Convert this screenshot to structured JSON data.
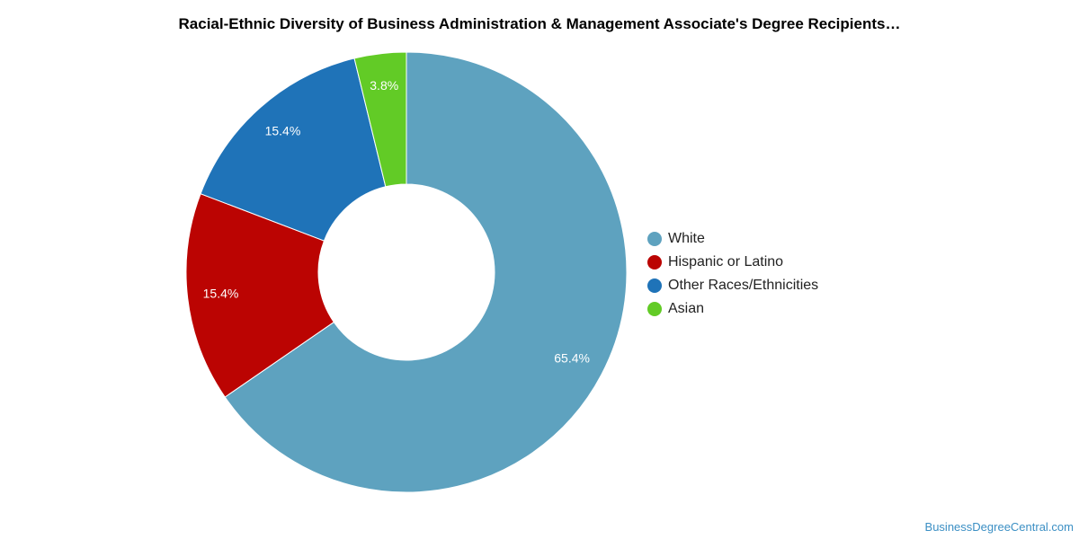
{
  "chart_data": {
    "type": "pie",
    "title": "Racial-Ethnic Diversity of Business Administration & Management Associate's Degree Recipients…",
    "donut": true,
    "legend_position": "right",
    "categories": [
      "White",
      "Hispanic or Latino",
      "Other Races/Ethnicities",
      "Asian"
    ],
    "values": [
      65.4,
      15.4,
      15.4,
      3.8
    ],
    "labels": [
      "65.4%",
      "15.4%",
      "15.4%",
      "3.8%"
    ],
    "colors": [
      "#5ea2bf",
      "#bb0402",
      "#1f73b8",
      "#62cb26"
    ]
  },
  "footer": {
    "source": "BusinessDegreeCentral.com"
  }
}
